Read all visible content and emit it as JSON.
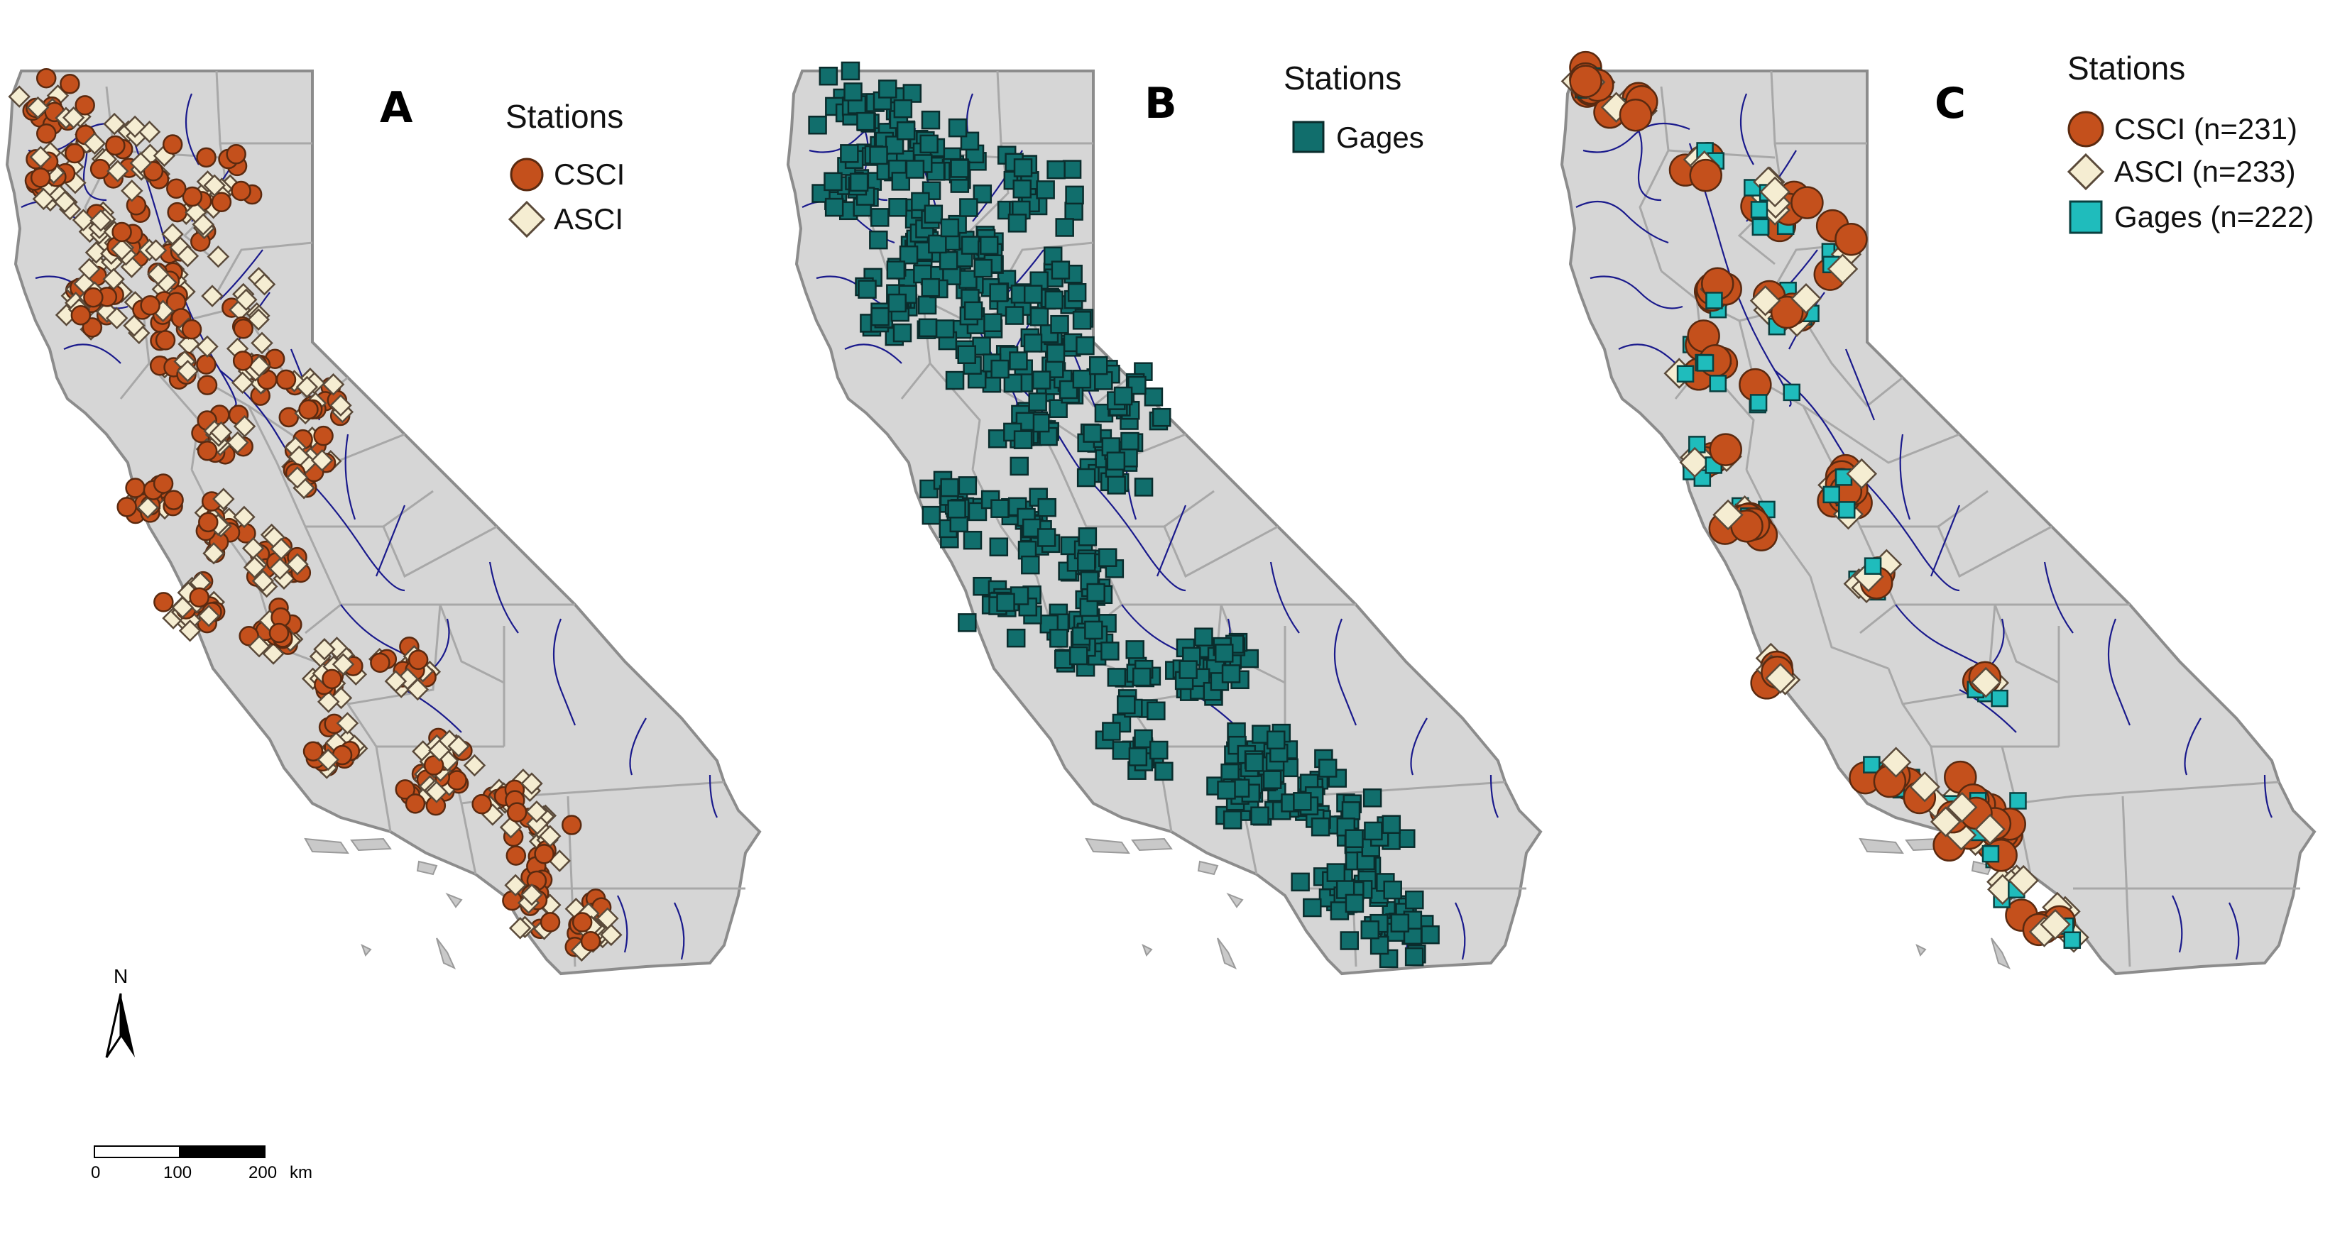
{
  "panels": [
    {
      "letter": "A",
      "legend": {
        "title": "Stations",
        "items": [
          {
            "label": "CSCI",
            "symbol": "circle",
            "fill": "#c4501c",
            "stroke": "#5a2a10"
          },
          {
            "label": "ASCI",
            "symbol": "diamond",
            "fill": "#f5edd2",
            "stroke": "#5a4a3a"
          }
        ]
      }
    },
    {
      "letter": "B",
      "legend": {
        "title": "Stations",
        "items": [
          {
            "label": "Gages",
            "symbol": "square",
            "fill": "#116e6c",
            "stroke": "#0a2c2c"
          }
        ]
      }
    },
    {
      "letter": "C",
      "legend": {
        "title": "Stations",
        "items": [
          {
            "label": "CSCI (n=231)",
            "symbol": "circle",
            "fill": "#c4501c",
            "stroke": "#5a2a10"
          },
          {
            "label": "ASCI (n=233)",
            "symbol": "diamond",
            "fill": "#f5edd2",
            "stroke": "#5a4a3a"
          },
          {
            "label": "Gages (n=222)",
            "symbol": "square",
            "fill": "#1fbcbc",
            "stroke": "#0a4040"
          }
        ]
      }
    }
  ],
  "north_arrow": {
    "label": "N"
  },
  "scale_bar": {
    "ticks": [
      "0",
      "100",
      "200"
    ],
    "unit": "km"
  },
  "colors": {
    "land": "#d6d6d6",
    "boundary": "#8c8c8c",
    "river": "#1a1a8c",
    "csci": "#c4501c",
    "asci": "#f5edd2",
    "gages_b": "#116e6c",
    "gages_c": "#1fbcbc"
  }
}
